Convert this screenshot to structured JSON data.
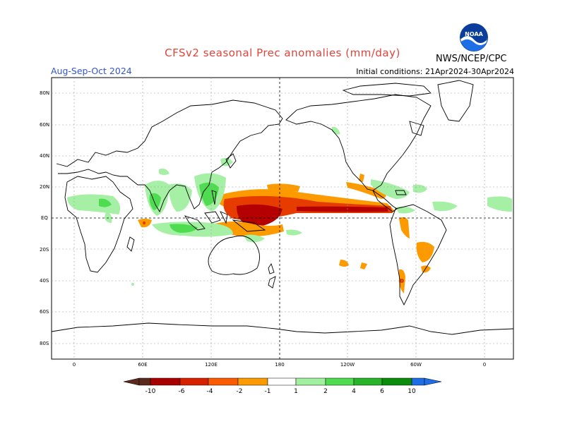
{
  "title": "CFSv2 seasonal Prec anomalies (mm/day)",
  "season": "Aug-Sep-Oct 2024",
  "initial_conditions": "Initial conditions: 21Apr2024-30Apr2024",
  "agency": "NWS/NCEP/CPC",
  "logo_text": "NOAA",
  "lat_labels": [
    "80N",
    "60N",
    "40N",
    "20N",
    "EQ",
    "20S",
    "40S",
    "60S",
    "80S"
  ],
  "lon_labels": [
    "0",
    "60E",
    "120E",
    "180",
    "120W",
    "60W",
    "0"
  ],
  "colorbar": {
    "labels": [
      "-10",
      "-6",
      "-4",
      "-2",
      "-1",
      "1",
      "2",
      "4",
      "6",
      "10"
    ],
    "colors": [
      "#5a2a1e",
      "#a80000",
      "#d72000",
      "#fa5a00",
      "#fc8c00",
      "#fcac00",
      "#ffffff",
      "#a0f0a0",
      "#50dc50",
      "#28b428",
      "#16a016",
      "#0a8c0a",
      "#1e6ee6"
    ]
  },
  "colors": {
    "dry_deep": "#b40000",
    "dry_mid": "#e63c00",
    "dry_light": "#fc9a00",
    "wet_light": "#a6f0a6",
    "wet_mid": "#50dc50",
    "wet_deep": "#28b428"
  }
}
